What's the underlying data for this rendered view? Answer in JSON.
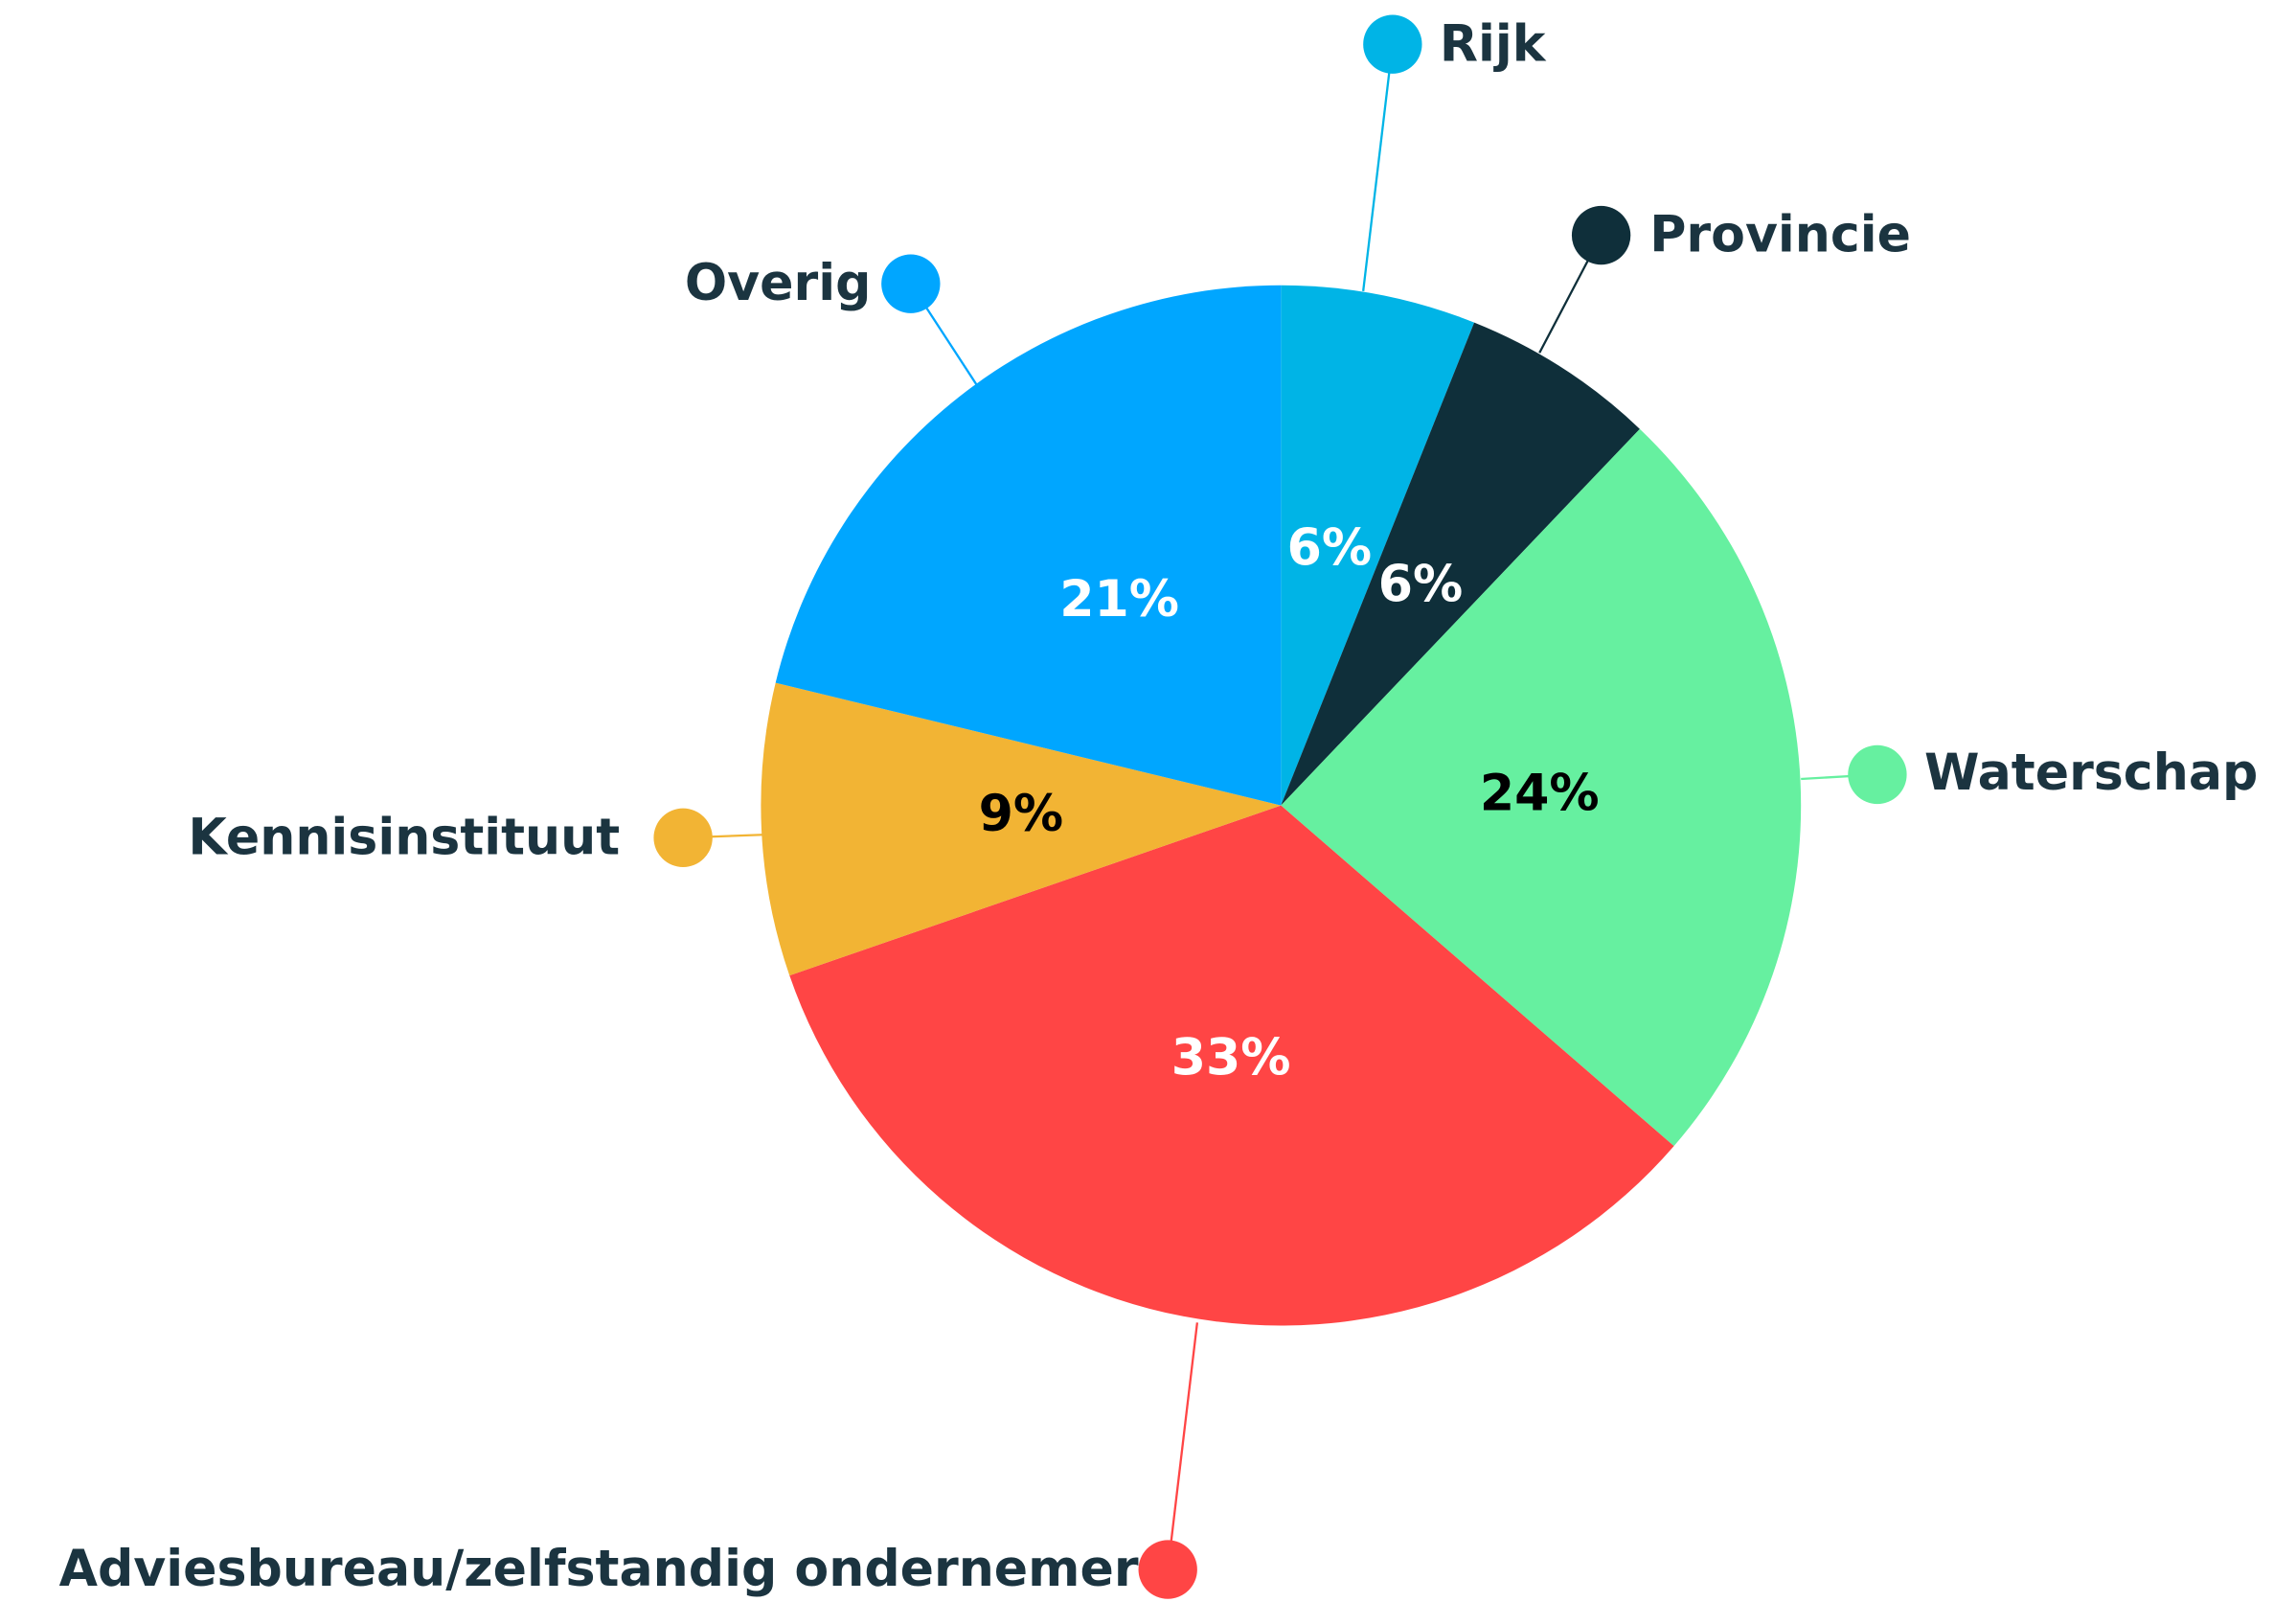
{
  "chart_data": {
    "type": "pie",
    "categories": [
      "Rijk",
      "Provincie",
      "Waterschap",
      "Adviesbureau/zelfstandig ondernemer",
      "Kennisinstituut",
      "Overig"
    ],
    "values": [
      6,
      6,
      24,
      33,
      9,
      21
    ],
    "value_labels": [
      "6%",
      "6%",
      "24%",
      "33%",
      "9%",
      "21%"
    ],
    "colors": [
      "#00b4e6",
      "#0f2f3a",
      "#66f0a0",
      "#ff4545",
      "#f2b434",
      "#00a6ff"
    ]
  }
}
